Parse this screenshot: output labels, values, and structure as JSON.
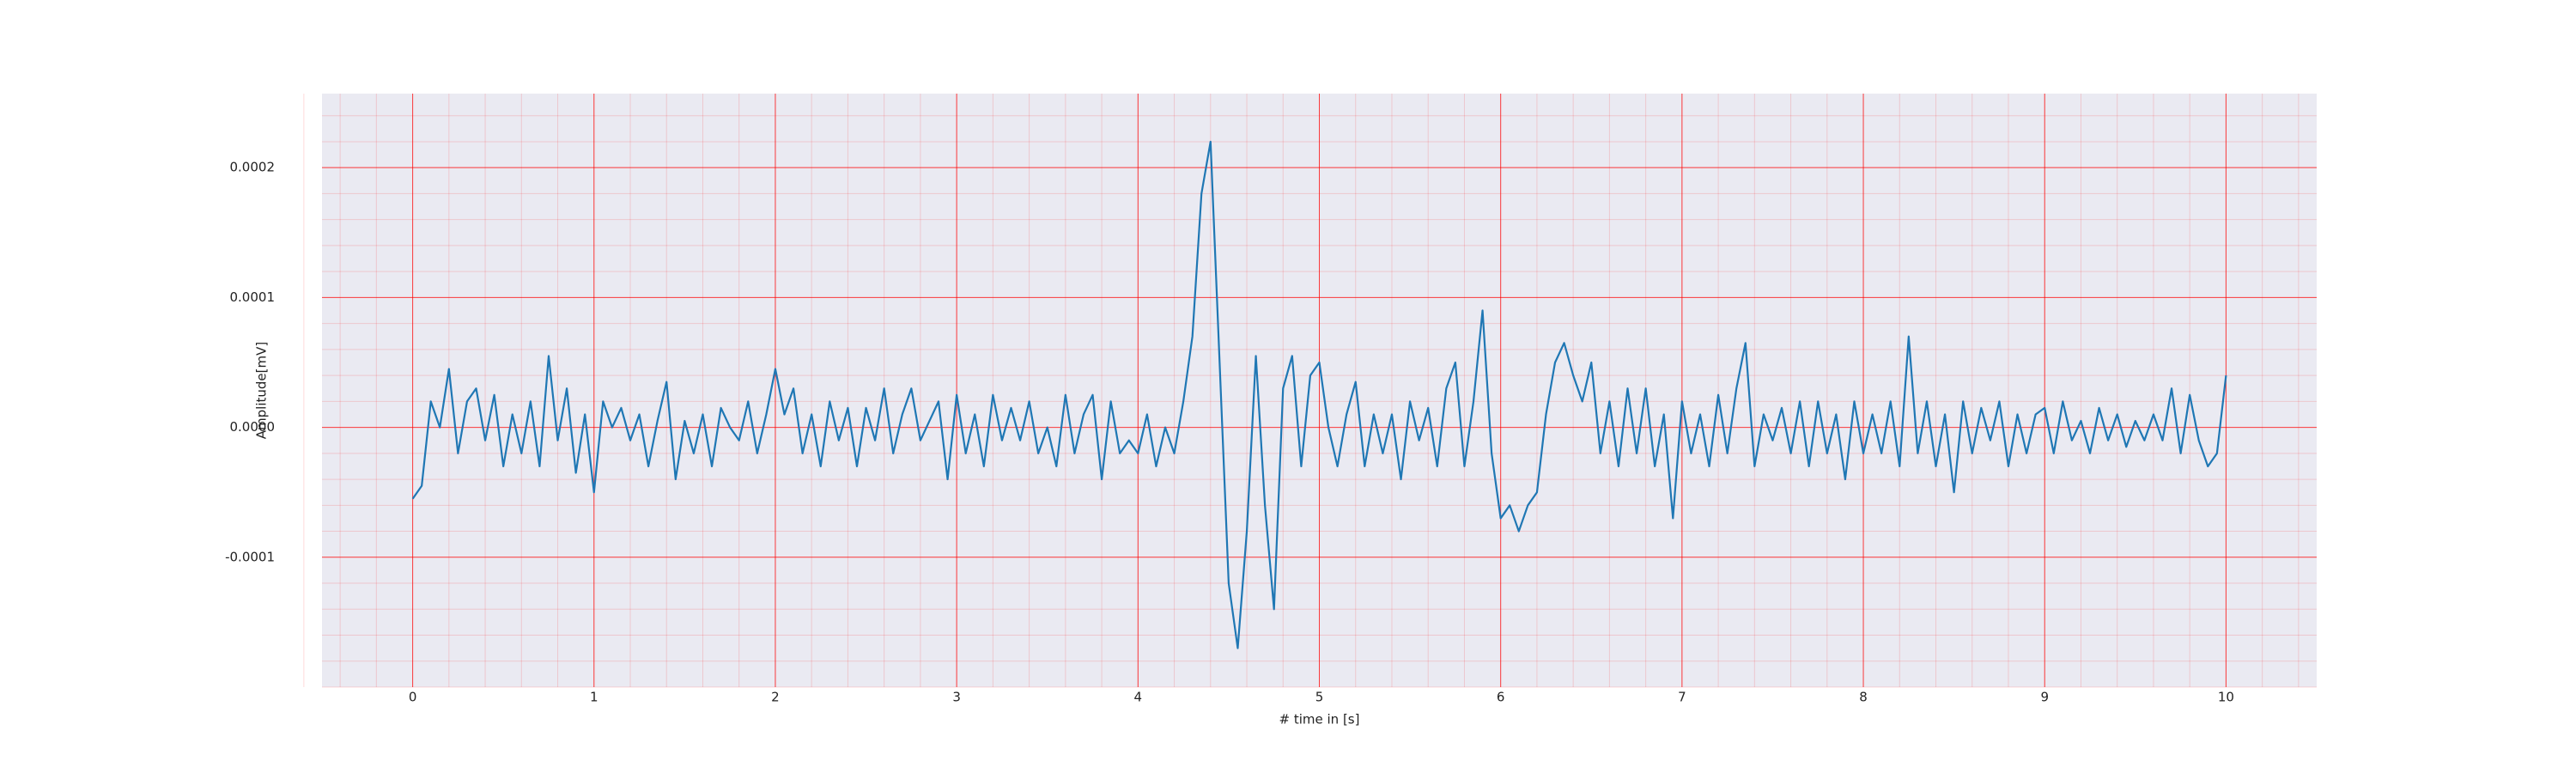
{
  "chart_data": {
    "type": "line",
    "xlabel": "# time in [s]",
    "ylabel": "Amplitude[mV]",
    "x": [
      0,
      0.05,
      0.1,
      0.15,
      0.2,
      0.25,
      0.3,
      0.35,
      0.4,
      0.45,
      0.5,
      0.55,
      0.6,
      0.65,
      0.7,
      0.75,
      0.8,
      0.85,
      0.9,
      0.95,
      1,
      1.05,
      1.1,
      1.15,
      1.2,
      1.25,
      1.3,
      1.35,
      1.4,
      1.45,
      1.5,
      1.55,
      1.6,
      1.65,
      1.7,
      1.75,
      1.8,
      1.85,
      1.9,
      1.95,
      2,
      2.05,
      2.1,
      2.15,
      2.2,
      2.25,
      2.3,
      2.35,
      2.4,
      2.45,
      2.5,
      2.55,
      2.6,
      2.65,
      2.7,
      2.75,
      2.8,
      2.85,
      2.9,
      2.95,
      3,
      3.05,
      3.1,
      3.15,
      3.2,
      3.25,
      3.3,
      3.35,
      3.4,
      3.45,
      3.5,
      3.55,
      3.6,
      3.65,
      3.7,
      3.75,
      3.8,
      3.85,
      3.9,
      3.95,
      4,
      4.05,
      4.1,
      4.15,
      4.2,
      4.25,
      4.3,
      4.35,
      4.4,
      4.45,
      4.5,
      4.55,
      4.6,
      4.65,
      4.7,
      4.75,
      4.8,
      4.85,
      4.9,
      4.95,
      5,
      5.05,
      5.1,
      5.15,
      5.2,
      5.25,
      5.3,
      5.35,
      5.4,
      5.45,
      5.5,
      5.55,
      5.6,
      5.65,
      5.7,
      5.75,
      5.8,
      5.85,
      5.9,
      5.95,
      6,
      6.05,
      6.1,
      6.15,
      6.2,
      6.25,
      6.3,
      6.35,
      6.4,
      6.45,
      6.5,
      6.55,
      6.6,
      6.65,
      6.7,
      6.75,
      6.8,
      6.85,
      6.9,
      6.95,
      7,
      7.05,
      7.1,
      7.15,
      7.2,
      7.25,
      7.3,
      7.35,
      7.4,
      7.45,
      7.5,
      7.55,
      7.6,
      7.65,
      7.7,
      7.75,
      7.8,
      7.85,
      7.9,
      7.95,
      8,
      8.05,
      8.1,
      8.15,
      8.2,
      8.25,
      8.3,
      8.35,
      8.4,
      8.45,
      8.5,
      8.55,
      8.6,
      8.65,
      8.7,
      8.75,
      8.8,
      8.85,
      8.9,
      8.95,
      9,
      9.05,
      9.1,
      9.15,
      9.2,
      9.25,
      9.3,
      9.35,
      9.4,
      9.45,
      9.5,
      9.55,
      9.6,
      9.65,
      9.7,
      9.75,
      9.8,
      9.85,
      9.9,
      9.95,
      10
    ],
    "series": [
      {
        "color": "#1f77b4",
        "values": [
          -5.5e-05,
          -4.5e-05,
          2e-05,
          0,
          4.5e-05,
          -2e-05,
          2e-05,
          3e-05,
          -1e-05,
          2.5e-05,
          -3e-05,
          1e-05,
          -2e-05,
          2e-05,
          -3e-05,
          5.5e-05,
          -1e-05,
          3e-05,
          -3.5e-05,
          1e-05,
          -5e-05,
          2e-05,
          0,
          1.5e-05,
          -1e-05,
          1e-05,
          -3e-05,
          5e-06,
          3.5e-05,
          -4e-05,
          5e-06,
          -2e-05,
          1e-05,
          -3e-05,
          1.5e-05,
          0,
          -1e-05,
          2e-05,
          -2e-05,
          1e-05,
          4.5e-05,
          1e-05,
          3e-05,
          -2e-05,
          1e-05,
          -3e-05,
          2e-05,
          -1e-05,
          1.5e-05,
          -3e-05,
          1.5e-05,
          -1e-05,
          3e-05,
          -2e-05,
          1e-05,
          3e-05,
          -1e-05,
          5e-06,
          2e-05,
          -4e-05,
          2.5e-05,
          -2e-05,
          1e-05,
          -3e-05,
          2.5e-05,
          -1e-05,
          1.5e-05,
          -1e-05,
          2e-05,
          -2e-05,
          0,
          -3e-05,
          2.5e-05,
          -2e-05,
          1e-05,
          2.5e-05,
          -4e-05,
          2e-05,
          -2e-05,
          -1e-05,
          -2e-05,
          1e-05,
          -3e-05,
          0,
          -2e-05,
          2e-05,
          7e-05,
          0.00018,
          0.00022,
          5e-05,
          -0.00012,
          -0.00017,
          -8e-05,
          5.5e-05,
          -6e-05,
          -0.00014,
          3e-05,
          5.5e-05,
          -3e-05,
          4e-05,
          5e-05,
          0,
          -3e-05,
          1e-05,
          3.5e-05,
          -3e-05,
          1e-05,
          -2e-05,
          1e-05,
          -4e-05,
          2e-05,
          -1e-05,
          1.5e-05,
          -3e-05,
          3e-05,
          5e-05,
          -3e-05,
          2e-05,
          9e-05,
          -2e-05,
          -7e-05,
          -6e-05,
          -8e-05,
          -6e-05,
          -5e-05,
          1e-05,
          5e-05,
          6.5e-05,
          4e-05,
          2e-05,
          5e-05,
          -2e-05,
          2e-05,
          -3e-05,
          3e-05,
          -2e-05,
          3e-05,
          -3e-05,
          1e-05,
          -7e-05,
          2e-05,
          -2e-05,
          1e-05,
          -3e-05,
          2.5e-05,
          -2e-05,
          3e-05,
          6.5e-05,
          -3e-05,
          1e-05,
          -1e-05,
          1.5e-05,
          -2e-05,
          2e-05,
          -3e-05,
          2e-05,
          -2e-05,
          1e-05,
          -4e-05,
          2e-05,
          -2e-05,
          1e-05,
          -2e-05,
          2e-05,
          -3e-05,
          7e-05,
          -2e-05,
          2e-05,
          -3e-05,
          1e-05,
          -5e-05,
          2e-05,
          -2e-05,
          1.5e-05,
          -1e-05,
          2e-05,
          -3e-05,
          1e-05,
          -2e-05,
          1e-05,
          1.5e-05,
          -2e-05,
          2e-05,
          -1e-05,
          5e-06,
          -2e-05,
          1.5e-05,
          -1e-05,
          1e-05,
          -1.5e-05,
          5e-06,
          -1e-05,
          1e-05,
          -1e-05,
          3e-05,
          -2e-05,
          2.5e-05,
          -1e-05,
          -3e-05,
          -2e-05,
          4e-05
        ]
      }
    ],
    "xlim": [
      -0.5,
      10.5
    ],
    "xticks": [
      0,
      1,
      2,
      3,
      4,
      5,
      6,
      7,
      8,
      9,
      10
    ],
    "ylim": [
      -0.0002,
      0.000257
    ],
    "yticks": [
      -0.0001,
      {
        "value": 0,
        "label": "0.0000"
      },
      0.0001,
      0.0002
    ],
    "grid": true,
    "minor_grid": true,
    "grid_color": "#ff0000",
    "background": "#eaeaf2"
  }
}
